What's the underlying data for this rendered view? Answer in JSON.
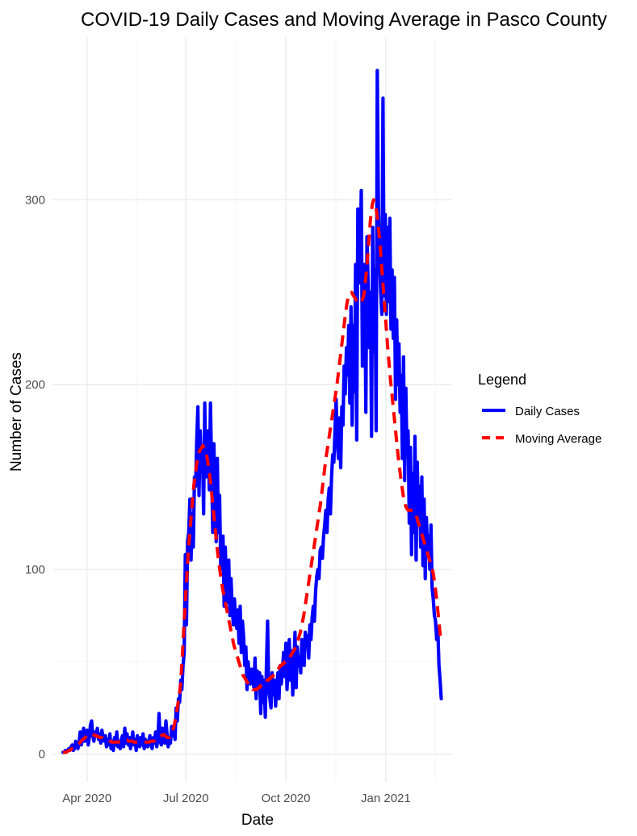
{
  "chart_data": {
    "type": "line",
    "title": "COVID-19 Daily Cases and Moving Average in Pasco County",
    "xlabel": "Date",
    "ylabel": "Number of Cases",
    "x_start": "2020-03-10",
    "x_end": "2021-02-21",
    "xlim": [
      "2020-03-01",
      "2021-03-03"
    ],
    "ylim": [
      -15,
      388
    ],
    "x_ticks": [
      {
        "date": "2020-04-01",
        "label": "Apr 2020"
      },
      {
        "date": "2020-07-01",
        "label": "Jul 2020"
      },
      {
        "date": "2020-10-01",
        "label": "Oct 2020"
      },
      {
        "date": "2021-01-01",
        "label": "Jan 2021"
      }
    ],
    "y_ticks": [
      0,
      100,
      200,
      300
    ],
    "legend": {
      "title": "Legend",
      "position": "right",
      "entries": [
        {
          "label": "Daily Cases",
          "color": "#0000ff",
          "style": "solid"
        },
        {
          "label": "Moving Average",
          "color": "#ff0000",
          "style": "dashed"
        }
      ]
    },
    "grid": true,
    "series": [
      {
        "name": "Daily Cases",
        "color": "#0000ff",
        "style": "solid",
        "values": [
          1,
          1,
          2,
          2,
          2,
          3,
          2,
          4,
          5,
          2,
          3,
          7,
          4,
          3,
          6,
          12,
          5,
          8,
          14,
          7,
          11,
          13,
          5,
          9,
          16,
          18,
          10,
          7,
          12,
          10,
          14,
          8,
          11,
          6,
          13,
          9,
          7,
          10,
          4,
          8,
          5,
          11,
          3,
          7,
          2,
          9,
          5,
          12,
          4,
          6,
          3,
          8,
          10,
          4,
          14,
          6,
          11,
          5,
          9,
          3,
          7,
          12,
          5,
          8,
          2,
          10,
          6,
          4,
          9,
          5,
          11,
          3,
          8,
          6,
          4,
          7,
          10,
          5,
          3,
          9,
          6,
          12,
          4,
          8,
          22,
          7,
          5,
          14,
          9,
          6,
          18,
          11,
          4,
          8,
          6,
          15,
          10,
          12,
          8,
          25,
          18,
          30,
          28,
          40,
          35,
          48,
          55,
          108,
          70,
          115,
          120,
          138,
          105,
          130,
          112,
          150,
          145,
          170,
          188,
          140,
          175,
          158,
          165,
          130,
          190,
          150,
          165,
          175,
          143,
          190,
          155,
          120,
          168,
          140,
          115,
          160,
          120,
          140,
          100,
          110,
          118,
          80,
          112,
          90,
          82,
          105,
          75,
          95,
          80,
          70,
          84,
          72,
          68,
          78,
          60,
          80,
          55,
          72,
          64,
          48,
          58,
          35,
          50,
          40,
          38,
          46,
          42,
          36,
          52,
          30,
          45,
          38,
          44,
          22,
          42,
          28,
          40,
          20,
          48,
          72,
          35,
          30,
          25,
          44,
          32,
          40,
          26,
          36,
          44,
          30,
          48,
          38,
          45,
          55,
          42,
          60,
          35,
          50,
          62,
          40,
          56,
          32,
          48,
          66,
          36,
          58,
          48,
          52,
          44,
          62,
          56,
          48,
          66,
          58,
          64,
          52,
          70,
          62,
          74,
          80,
          72,
          88,
          96,
          100,
          95,
          110,
          112,
          106,
          118,
          124,
          132,
          120,
          138,
          144,
          130,
          150,
          162,
          158,
          175,
          192,
          170,
          160,
          182,
          155,
          188,
          178,
          210,
          195,
          220,
          205,
          232,
          190,
          242,
          178,
          232,
          196,
          265,
          170,
          295,
          255,
          265,
          305,
          210,
          245,
          265,
          185,
          280,
          255,
          220,
          250,
          172,
          285,
          218,
          262,
          175,
          370,
          298,
          268,
          250,
          238,
          355,
          248,
          292,
          238,
          285,
          245,
          290,
          230,
          262,
          225,
          258,
          192,
          235,
          200,
          222,
          185,
          205,
          160,
          215,
          148,
          198,
          162,
          175,
          125,
          166,
          108,
          152,
          120,
          172,
          105,
          158,
          128,
          145,
          112,
          150,
          102,
          138,
          95,
          128,
          110,
          118,
          100,
          124,
          90,
          84,
          75,
          72,
          62,
          68,
          48,
          40,
          30
        ]
      },
      {
        "name": "Moving Average",
        "color": "#ff0000",
        "style": "dashed",
        "values": [
          1,
          1,
          1,
          1,
          1.5,
          2,
          2,
          2.5,
          3,
          3,
          3.5,
          4,
          4.5,
          5,
          5.5,
          6,
          7,
          7.5,
          8,
          8.5,
          9,
          9.5,
          10,
          10,
          10.5,
          11,
          11,
          10.5,
          10.5,
          10,
          10,
          9.5,
          9.5,
          9,
          9,
          9,
          8.5,
          8.5,
          8,
          8,
          7.5,
          7.5,
          7,
          7,
          6.5,
          6.5,
          6.5,
          6.5,
          6.5,
          6.5,
          6.5,
          7,
          7,
          7,
          7.5,
          7.5,
          7.5,
          7.5,
          7.5,
          7,
          7,
          7,
          7,
          7,
          6.5,
          6.5,
          6.5,
          6.5,
          6.5,
          6.5,
          6.5,
          6.5,
          6.5,
          6.5,
          6.5,
          6.5,
          6.5,
          6.5,
          6.5,
          7,
          7,
          7,
          7,
          7.5,
          8.5,
          9,
          9,
          9.5,
          10,
          10,
          10.5,
          10.5,
          10,
          9.5,
          9,
          9,
          9,
          10,
          11,
          13,
          15,
          18,
          21,
          25,
          29,
          33,
          38,
          48,
          58,
          70,
          80,
          90,
          100,
          110,
          118,
          125,
          132,
          140,
          146,
          150,
          155,
          159,
          162,
          164,
          165,
          166,
          167,
          166,
          165,
          163,
          160,
          156,
          152,
          147,
          141,
          135,
          129,
          123,
          117,
          111,
          106,
          101,
          97,
          93,
          89,
          86,
          83,
          80,
          77,
          74,
          71,
          68,
          65,
          62,
          59,
          57,
          55,
          53,
          51,
          49,
          47,
          45,
          43,
          42,
          41,
          40,
          39,
          38,
          37,
          36,
          36,
          35,
          35,
          35,
          35,
          35,
          36,
          36,
          37,
          37,
          38,
          38,
          39,
          39,
          40,
          40,
          41,
          41,
          42,
          42,
          43,
          44,
          44,
          45,
          46,
          47,
          48,
          48,
          49,
          49,
          50,
          50,
          51,
          51,
          52,
          53,
          54,
          55,
          56,
          57,
          58,
          60,
          62,
          64,
          66,
          69,
          72,
          75,
          79,
          83,
          87,
          91,
          95,
          99,
          103,
          107,
          111,
          115,
          119,
          123,
          127,
          131,
          135,
          140,
          145,
          150,
          155,
          160,
          164,
          168,
          172,
          176,
          180,
          184,
          188,
          192,
          196,
          200,
          205,
          210,
          215,
          220,
          225,
          230,
          235,
          240,
          244,
          247,
          249,
          250,
          250,
          249,
          248,
          247,
          246,
          245,
          244,
          244,
          244,
          245,
          246,
          248,
          252,
          258,
          265,
          272,
          280,
          288,
          294,
          298,
          300,
          299,
          296,
          292,
          287,
          281,
          274,
          266,
          258,
          250,
          242,
          234,
          226,
          218,
          211,
          204,
          198,
          192,
          186,
          180,
          174,
          168,
          162,
          157,
          152,
          147,
          143,
          139,
          136,
          134,
          133,
          132,
          132,
          132,
          132,
          132,
          132,
          131,
          130,
          128,
          126,
          124,
          122,
          120,
          118,
          116,
          114,
          112,
          110,
          108,
          106,
          104,
          102,
          100,
          97,
          93,
          88,
          83,
          77,
          71,
          65,
          61
        ]
      }
    ]
  }
}
